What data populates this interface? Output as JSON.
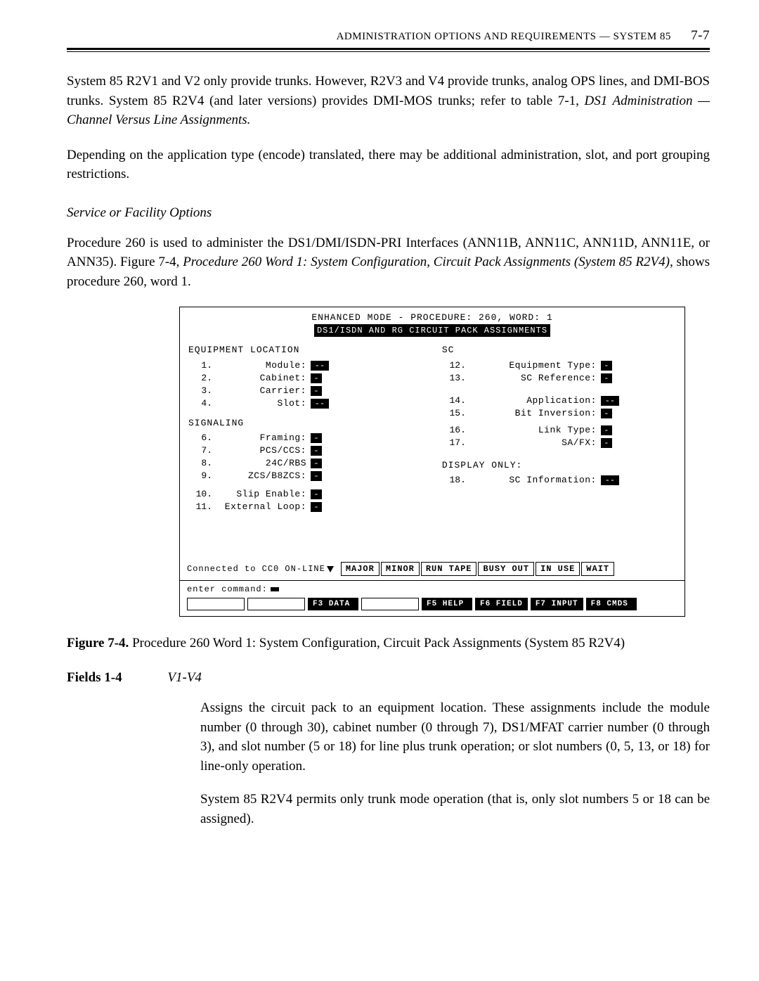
{
  "header": {
    "text": "ADMINISTRATION OPTIONS AND REQUIREMENTS — SYSTEM 85",
    "page": "7-7"
  },
  "para1": "System 85 R2V1 and V2 only provide trunks. However, R2V3 and V4 provide trunks, analog OPS lines, and DMI-BOS trunks. System 85 R2V4 (and later versions) provides DMI-MOS trunks; refer to table 7-1,",
  "para1_em": "DS1 Administration — Channel Versus Line Assignments.",
  "para2": "Depending on the application type (encode) translated, there may be additional administration, slot, and port grouping restrictions.",
  "service_title": "Service or Facility Options",
  "para3a": "Procedure 260 is used to administer the DS1/DMI/ISDN-PRI Interfaces (ANN11B, ANN11C, ANN11D, ANN11E, or ANN35). Figure 7-4,",
  "para3_em": "Procedure 260 Word 1: System Configuration, Circuit Pack Assignments (System 85 R2V4),",
  "para3b": "shows procedure 260, word 1.",
  "terminal": {
    "title1": "ENHANCED MODE - PROCEDURE: 260, WORD: 1",
    "title2": "DS1/ISDN AND RG CIRCUIT PACK ASSIGNMENTS",
    "left_head1": "EQUIPMENT LOCATION",
    "left1": [
      {
        "n": "1.",
        "label": "Module:",
        "w": "wide",
        "v": "--"
      },
      {
        "n": "2.",
        "label": "Cabinet:",
        "w": "",
        "v": "-"
      },
      {
        "n": "3.",
        "label": "Carrier:",
        "w": "",
        "v": "-"
      },
      {
        "n": "4.",
        "label": "Slot:",
        "w": "wide",
        "v": "--"
      }
    ],
    "left_head2": "SIGNALING",
    "left2": [
      {
        "n": "6.",
        "label": "Framing:",
        "w": "",
        "v": "-"
      },
      {
        "n": "7.",
        "label": "PCS/CCS:",
        "w": "",
        "v": "-"
      },
      {
        "n": "8.",
        "label": "24C/RBS",
        "w": "",
        "v": "-"
      },
      {
        "n": "9.",
        "label": "ZCS/B8ZCS:",
        "w": "",
        "v": "-"
      }
    ],
    "left3": [
      {
        "n": "10.",
        "label": "Slip Enable:",
        "w": "",
        "v": "-"
      },
      {
        "n": "11.",
        "label": "External Loop:",
        "w": "",
        "v": "-"
      }
    ],
    "right_head": "SC",
    "right1": [
      {
        "n": "12.",
        "label": "Equipment Type:",
        "w": "",
        "v": "-"
      },
      {
        "n": "13.",
        "label": "SC Reference:",
        "w": "",
        "v": "-"
      }
    ],
    "right2": [
      {
        "n": "14.",
        "label": "Application:",
        "w": "wide",
        "v": "--"
      },
      {
        "n": "15.",
        "label": "Bit Inversion:",
        "w": "",
        "v": "-"
      }
    ],
    "right3": [
      {
        "n": "16.",
        "label": "Link Type:",
        "w": "",
        "v": "-"
      },
      {
        "n": "17.",
        "label": "SA/FX:",
        "w": "",
        "v": "-"
      }
    ],
    "right_head2": "DISPLAY ONLY:",
    "right4": [
      {
        "n": "18.",
        "label": "SC Information:",
        "w": "wide",
        "v": "--"
      }
    ],
    "status_left": "Connected to CC0 ON-LINE",
    "status_chips": [
      "MAJOR",
      "MINOR",
      "RUN TAPE",
      "BUSY OUT",
      "IN USE",
      "WAIT"
    ],
    "cmd_label": "enter command:",
    "fkeys": [
      "",
      "",
      "F3 DATA",
      "",
      "F5 HELP",
      "F6 FIELD",
      "F7 INPUT",
      "F8 CMDS"
    ]
  },
  "fig_caption_lead": "Figure 7-4.",
  "fig_caption_text": "Procedure 260 Word 1: System Configuration, Circuit Pack Assignments (System 85 R2V4)",
  "fields_label": "Fields 1-4",
  "fields_val": "V1-V4",
  "field_p1": "Assigns the circuit pack to an equipment location. These assignments include the module number (0 through 30), cabinet number (0 through 7), DS1/MFAT carrier number (0 through 3), and slot number (5 or 18) for line plus trunk operation; or slot numbers (0, 5, 13, or 18) for line-only operation.",
  "field_p2": "System 85 R2V4 permits only trunk mode operation (that is, only slot numbers 5 or 18 can be assigned)."
}
